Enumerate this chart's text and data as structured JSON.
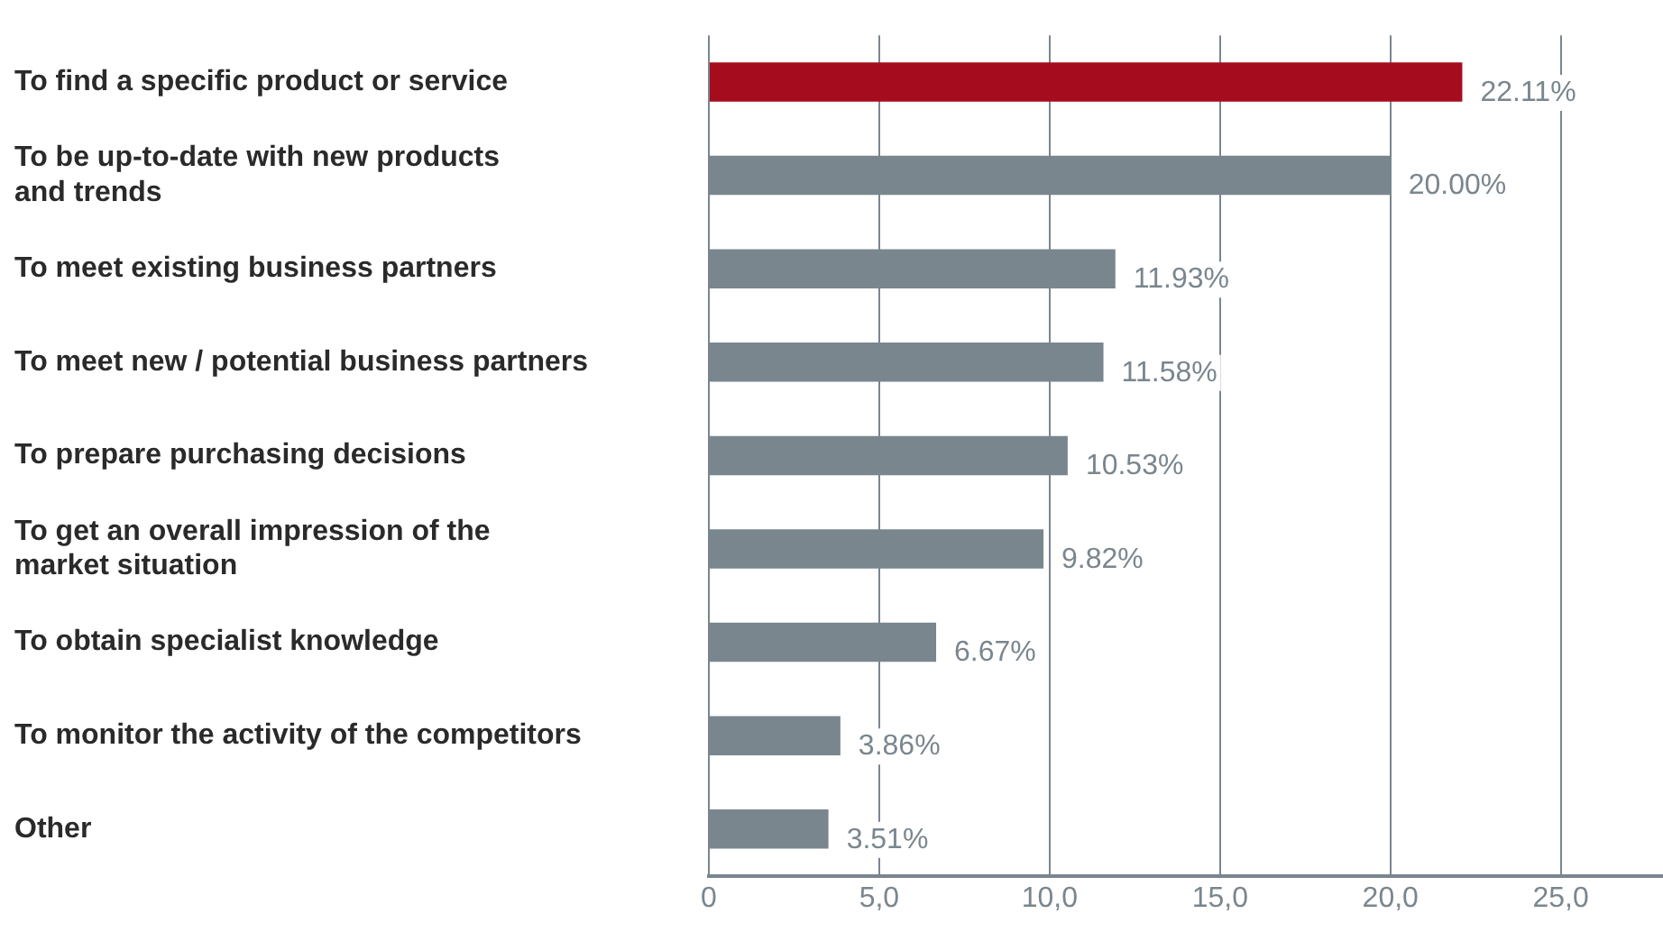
{
  "chart_data": {
    "type": "bar",
    "orientation": "horizontal",
    "categories": [
      "To find a specific product or service",
      "To be up-to-date with new products\nand trends",
      "To meet existing business partners",
      "To meet new / potential business partners",
      "To prepare purchasing decisions",
      "To get an overall impression of the\nmarket situation",
      "To obtain specialist knowledge",
      "To monitor the activity of the competitors",
      "Other"
    ],
    "values": [
      22.11,
      20.0,
      11.93,
      11.58,
      10.53,
      9.82,
      6.67,
      3.86,
      3.51
    ],
    "colors": [
      "#a50d1e",
      "#7a868e",
      "#7a868e",
      "#7a868e",
      "#7a868e",
      "#7a868e",
      "#7a868e",
      "#7a868e",
      "#7a868e"
    ],
    "value_labels": [
      "22.11%",
      "20.00%",
      "11.93%",
      "11.58%",
      "10.53%",
      "9.82%",
      "6.67%",
      "3.86%",
      "3.51%"
    ],
    "xlim": [
      0,
      28
    ],
    "xticks": [
      0,
      {
        "value": 5,
        "label": "5,0"
      },
      {
        "value": 10,
        "label": "10,0"
      },
      {
        "value": 15,
        "label": "15,0"
      },
      {
        "value": 20,
        "label": "20,0"
      },
      {
        "value": 25,
        "label": "25,0"
      }
    ],
    "grid": "x",
    "legend": false
  }
}
